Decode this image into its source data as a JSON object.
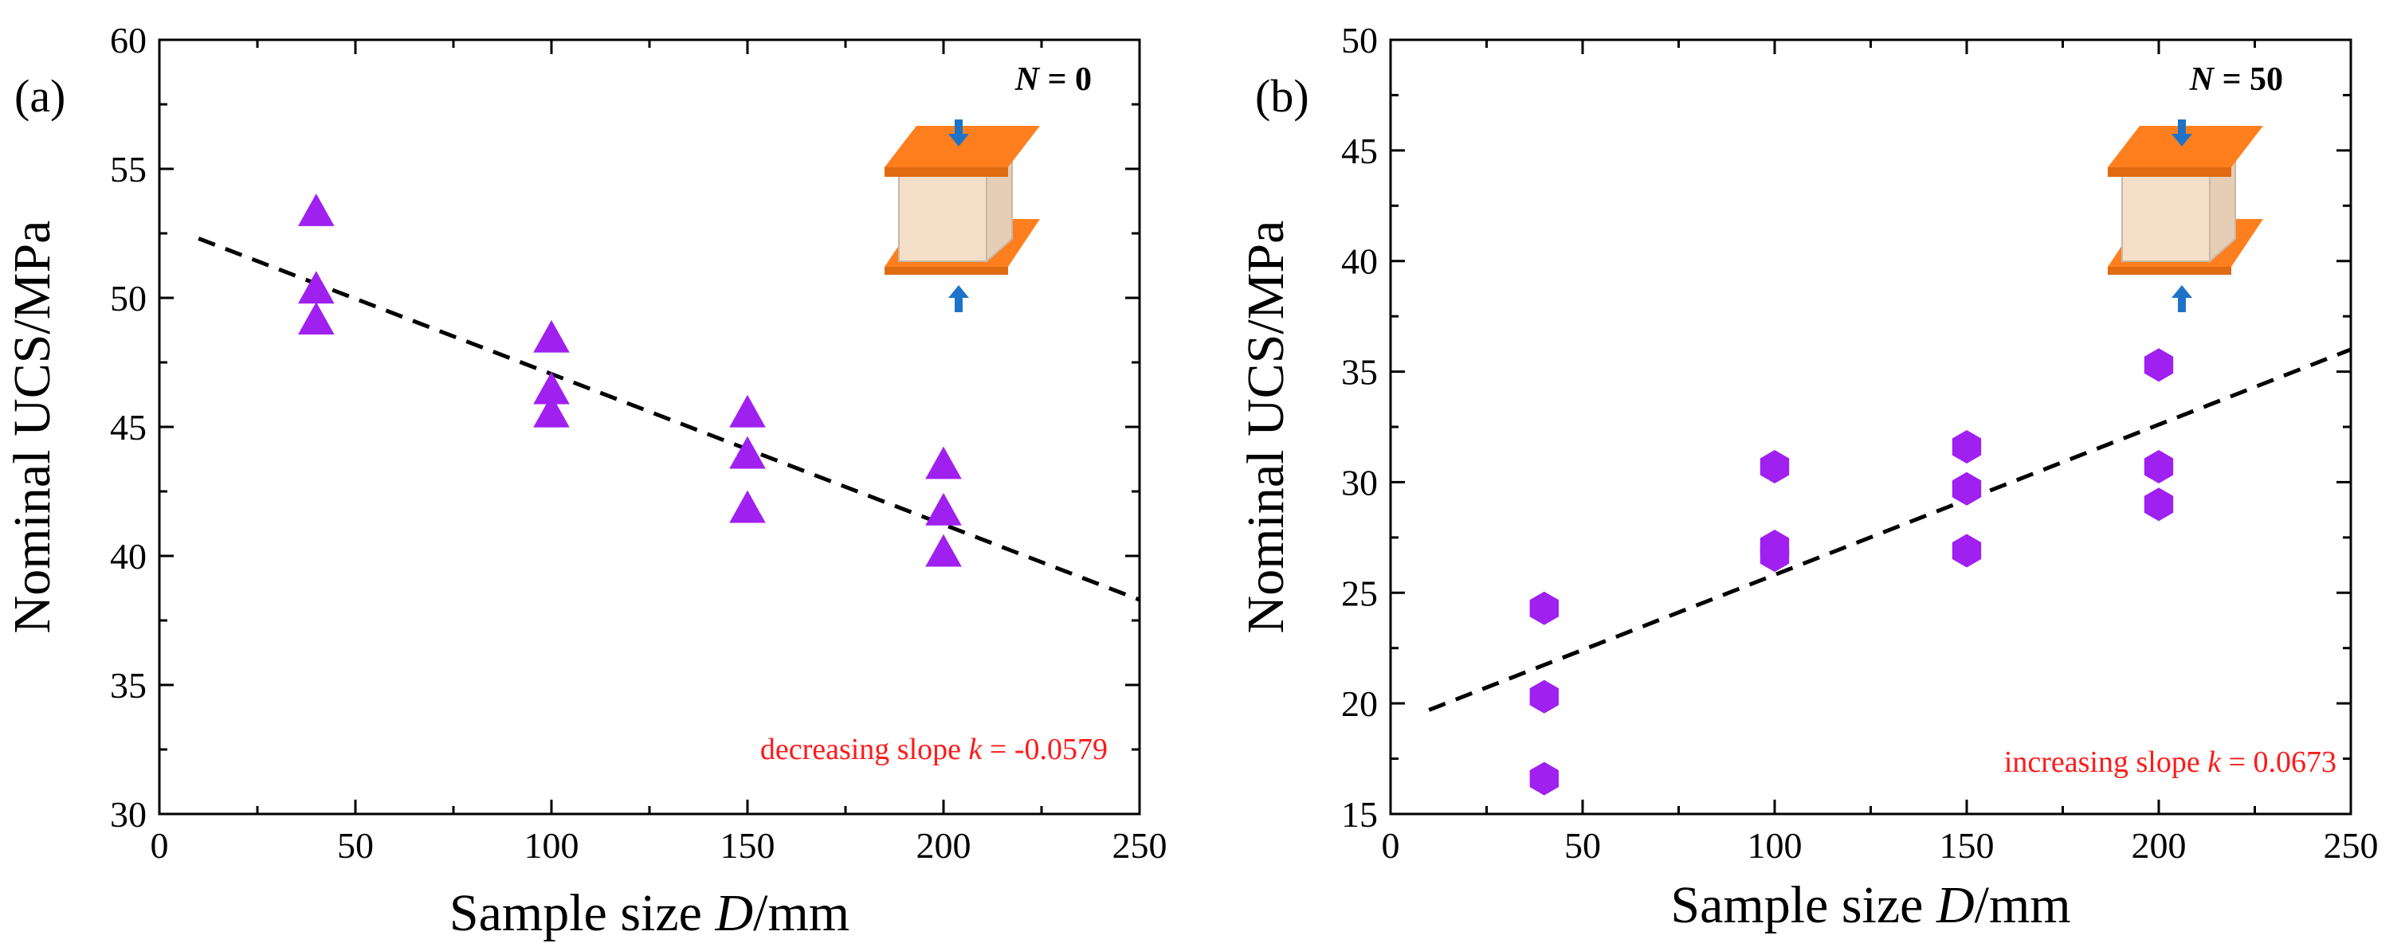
{
  "chart_data": [
    {
      "type": "scatter",
      "panel_label": "(a)",
      "condition": {
        "prefix": "N",
        "value": " = 0"
      },
      "xlabel": {
        "pre": "Sample size ",
        "var": "D",
        "post": "/mm"
      },
      "ylabel": "Nominal UCS/MPa",
      "xlim": [
        0,
        250
      ],
      "ylim": [
        30,
        60
      ],
      "x_ticks": [
        "0",
        "50",
        "100",
        "150",
        "200",
        "250"
      ],
      "y_ticks": [
        "30",
        "35",
        "40",
        "45",
        "50",
        "55",
        "60"
      ],
      "marker": "triangle",
      "marker_color": "#a020f0",
      "points": [
        {
          "x": 40,
          "y": 53.3
        },
        {
          "x": 40,
          "y": 50.3
        },
        {
          "x": 40,
          "y": 49.1
        },
        {
          "x": 100,
          "y": 48.4
        },
        {
          "x": 100,
          "y": 46.4
        },
        {
          "x": 100,
          "y": 45.5
        },
        {
          "x": 150,
          "y": 45.5
        },
        {
          "x": 150,
          "y": 43.9
        },
        {
          "x": 150,
          "y": 41.8
        },
        {
          "x": 200,
          "y": 43.5
        },
        {
          "x": 200,
          "y": 41.7
        },
        {
          "x": 200,
          "y": 40.1
        }
      ],
      "trend": {
        "x0": 10,
        "y0": 52.3,
        "x1": 250,
        "y1": 38.3,
        "style": "dashed"
      },
      "annotation": {
        "pre": "decreasing slope ",
        "var": "k",
        "post": " = -0.0579"
      }
    },
    {
      "type": "scatter",
      "panel_label": "(b)",
      "condition": {
        "prefix": "N",
        "value": " = 50"
      },
      "xlabel": {
        "pre": "Sample size ",
        "var": "D",
        "post": "/mm"
      },
      "ylabel": "Nominal UCS/MPa",
      "xlim": [
        0,
        250
      ],
      "ylim": [
        15,
        50
      ],
      "x_ticks": [
        "0",
        "50",
        "100",
        "150",
        "200",
        "250"
      ],
      "y_ticks": [
        "15",
        "20",
        "25",
        "30",
        "35",
        "40",
        "45",
        "50"
      ],
      "marker": "hexagon",
      "marker_color": "#a020f0",
      "points": [
        {
          "x": 40,
          "y": 24.3
        },
        {
          "x": 40,
          "y": 20.3
        },
        {
          "x": 40,
          "y": 16.6
        },
        {
          "x": 100,
          "y": 30.7
        },
        {
          "x": 100,
          "y": 27.1
        },
        {
          "x": 100,
          "y": 26.7
        },
        {
          "x": 150,
          "y": 31.6
        },
        {
          "x": 150,
          "y": 29.7
        },
        {
          "x": 150,
          "y": 26.9
        },
        {
          "x": 200,
          "y": 35.3
        },
        {
          "x": 200,
          "y": 30.7
        },
        {
          "x": 200,
          "y": 29.0
        }
      ],
      "trend": {
        "x0": 10,
        "y0": 19.7,
        "x1": 250,
        "y1": 36.0,
        "style": "dashed"
      },
      "annotation": {
        "pre": "increasing slope  ",
        "var": "k",
        "post": " = 0.0673"
      }
    }
  ],
  "colors": {
    "marker": "#a020f0",
    "trend": "#000000",
    "annotation": "#ff1a1a",
    "plate": "#ff7f1f",
    "plate_dark": "#e06a10",
    "specimen": "#f5dfc8",
    "arrow": "#1e73c8"
  }
}
